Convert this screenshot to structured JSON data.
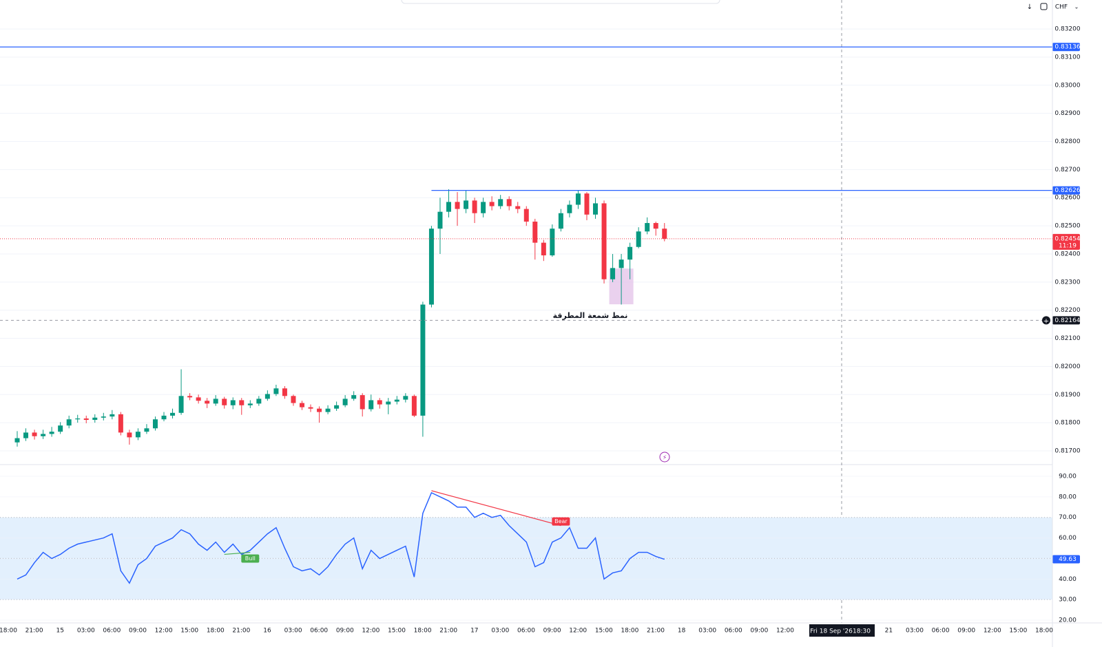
{
  "toolbar": {
    "currency": "CHF"
  },
  "time_axis": {
    "labels": [
      "18:00",
      "21:00",
      "15",
      "03:00",
      "06:00",
      "09:00",
      "12:00",
      "15:00",
      "18:00",
      "21:00",
      "16",
      "03:00",
      "06:00",
      "09:00",
      "12:00",
      "15:00",
      "18:00",
      "21:00",
      "17",
      "03:00",
      "06:00",
      "09:00",
      "12:00",
      "15:00",
      "18:00",
      "21:00",
      "18",
      "03:00",
      "06:00",
      "09:00",
      "12:00",
      null,
      null,
      null,
      "21",
      "03:00",
      "06:00",
      "09:00",
      "12:00",
      "15:00",
      "18:00"
    ],
    "crosshair_label": "Fri 18 Sep '26",
    "crosshair_time": "18:30"
  },
  "chart_data": [
    {
      "type": "candlestick",
      "up_color": "#089981",
      "down_color": "#f23645",
      "ylim": [
        0.81651,
        0.83303
      ],
      "yticks": [
        {
          "value": 0.832,
          "label": "0.83200"
        },
        {
          "value": 0.831,
          "label": "0.83100"
        },
        {
          "value": 0.83,
          "label": "0.83000"
        },
        {
          "value": 0.829,
          "label": "0.82900"
        },
        {
          "value": 0.828,
          "label": "0.82800"
        },
        {
          "value": 0.827,
          "label": "0.82700"
        },
        {
          "value": 0.826,
          "label": "0.82600"
        },
        {
          "value": 0.825,
          "label": "0.82500"
        },
        {
          "value": 0.824,
          "label": "0.82400"
        },
        {
          "value": 0.823,
          "label": "0.82300"
        },
        {
          "value": 0.822,
          "label": "0.82200"
        },
        {
          "value": 0.821,
          "label": "0.82100"
        },
        {
          "value": 0.82,
          "label": "0.82000"
        },
        {
          "value": 0.819,
          "label": "0.81900"
        },
        {
          "value": 0.818,
          "label": "0.81800"
        },
        {
          "value": 0.817,
          "label": "0.81700"
        }
      ],
      "open": [
        0.8173,
        0.81745,
        0.81765,
        0.81752,
        0.8176,
        0.81768,
        0.8179,
        0.81812,
        0.81815,
        0.8181,
        0.81818,
        0.81822,
        0.8183,
        0.81765,
        0.81748,
        0.81768,
        0.8178,
        0.81812,
        0.81825,
        0.81835,
        0.81895,
        0.8189,
        0.81878,
        0.81868,
        0.81885,
        0.81862,
        0.8188,
        0.81862,
        0.81868,
        0.81885,
        0.81902,
        0.81922,
        0.81895,
        0.8187,
        0.81855,
        0.8185,
        0.81838,
        0.8185,
        0.81862,
        0.81885,
        0.81898,
        0.81848,
        0.8188,
        0.81865,
        0.81875,
        0.81882,
        0.81895,
        0.81825,
        0.8222,
        0.8249,
        0.8255,
        0.82585,
        0.8256,
        0.8259,
        0.82545,
        0.82585,
        0.8257,
        0.82595,
        0.8257,
        0.8256,
        0.82515,
        0.8244,
        0.82395,
        0.8249,
        0.82545,
        0.82575,
        0.82615,
        0.8254,
        0.8258,
        0.8231,
        0.8235,
        0.8238,
        0.82425,
        0.8248,
        0.8251,
        0.8249
      ],
      "high": [
        0.8177,
        0.8178,
        0.81775,
        0.81775,
        0.81785,
        0.81802,
        0.81825,
        0.81828,
        0.81825,
        0.8183,
        0.81835,
        0.81845,
        0.81838,
        0.81775,
        0.8178,
        0.81795,
        0.81822,
        0.81838,
        0.8185,
        0.8199,
        0.81905,
        0.819,
        0.81888,
        0.81898,
        0.81892,
        0.8189,
        0.81888,
        0.8188,
        0.81895,
        0.81915,
        0.81935,
        0.8193,
        0.819,
        0.81878,
        0.81865,
        0.81858,
        0.81862,
        0.81875,
        0.81898,
        0.81912,
        0.81905,
        0.819,
        0.81888,
        0.81888,
        0.81895,
        0.81905,
        0.819,
        0.8223,
        0.825,
        0.826,
        0.8263,
        0.8262,
        0.82625,
        0.826,
        0.826,
        0.82605,
        0.8261,
        0.82605,
        0.82585,
        0.8257,
        0.82525,
        0.8245,
        0.82505,
        0.8256,
        0.8259,
        0.82626,
        0.8262,
        0.826,
        0.8259,
        0.824,
        0.824,
        0.8244,
        0.82495,
        0.8253,
        0.82515,
        0.8251
      ],
      "low": [
        0.81715,
        0.81735,
        0.8174,
        0.81742,
        0.8175,
        0.8176,
        0.8178,
        0.818,
        0.81798,
        0.818,
        0.81808,
        0.81812,
        0.81755,
        0.81722,
        0.81738,
        0.8176,
        0.81772,
        0.81805,
        0.81815,
        0.81828,
        0.8188,
        0.81868,
        0.81852,
        0.8186,
        0.8185,
        0.81848,
        0.81828,
        0.81852,
        0.8186,
        0.81878,
        0.81895,
        0.81885,
        0.8186,
        0.81845,
        0.81838,
        0.818,
        0.8183,
        0.81842,
        0.81855,
        0.81878,
        0.81822,
        0.8184,
        0.8185,
        0.8183,
        0.81865,
        0.81872,
        0.8182,
        0.8175,
        0.8221,
        0.824,
        0.8253,
        0.825,
        0.82545,
        0.8251,
        0.8253,
        0.82555,
        0.8256,
        0.82555,
        0.82545,
        0.825,
        0.8238,
        0.82375,
        0.8239,
        0.8248,
        0.8253,
        0.8256,
        0.8252,
        0.82525,
        0.82295,
        0.823,
        0.8222,
        0.8231,
        0.8242,
        0.8247,
        0.82465,
        0.82445
      ],
      "close": [
        0.81745,
        0.81765,
        0.81752,
        0.8176,
        0.81768,
        0.8179,
        0.81812,
        0.81815,
        0.8181,
        0.81818,
        0.81822,
        0.8183,
        0.81765,
        0.81748,
        0.81768,
        0.8178,
        0.81812,
        0.81825,
        0.81835,
        0.81895,
        0.8189,
        0.81878,
        0.81868,
        0.81885,
        0.81862,
        0.8188,
        0.81862,
        0.81868,
        0.81885,
        0.81902,
        0.81922,
        0.81895,
        0.8187,
        0.81855,
        0.8185,
        0.81838,
        0.8185,
        0.81862,
        0.81885,
        0.81898,
        0.81848,
        0.8188,
        0.81865,
        0.81875,
        0.81882,
        0.81895,
        0.81825,
        0.8222,
        0.8249,
        0.8255,
        0.82585,
        0.8256,
        0.8259,
        0.82545,
        0.82585,
        0.8257,
        0.82595,
        0.8257,
        0.8256,
        0.82515,
        0.8244,
        0.82395,
        0.8249,
        0.82545,
        0.82575,
        0.82615,
        0.8254,
        0.8258,
        0.8231,
        0.8235,
        0.8238,
        0.82425,
        0.8248,
        0.8251,
        0.8249,
        0.82454
      ],
      "lines": [
        {
          "value": 0.83136,
          "color": "#2962ff"
        },
        {
          "value": 0.82626,
          "color": "#2962ff",
          "start": 48
        }
      ],
      "last_price": 0.82454,
      "last_color": "#f23645",
      "countdown": "11:19",
      "crosshair_price": 0.82164,
      "annotation": {
        "text": "نمط شمعة المطرقة",
        "from": 69,
        "to": 71,
        "top": 0.82348,
        "bottom": 0.82221,
        "color": "#e1bee7"
      }
    },
    {
      "type": "line",
      "color": "#2962ff",
      "values": [
        40,
        42,
        48,
        53,
        50,
        52,
        55,
        57,
        58,
        59,
        60,
        62,
        44,
        38,
        47,
        50,
        56,
        58,
        60,
        64,
        62,
        57,
        54,
        58,
        53,
        57,
        52,
        54,
        58,
        62,
        65,
        55,
        46,
        44,
        45,
        42,
        46,
        52,
        57,
        60,
        45,
        54,
        50,
        52,
        54,
        56,
        41,
        72,
        82,
        80,
        78,
        75,
        75,
        70,
        72,
        70,
        71,
        66,
        62,
        58,
        46,
        48,
        58,
        60,
        65,
        55,
        55,
        60,
        40,
        43,
        44,
        50,
        53,
        53,
        51,
        49.63
      ],
      "ylim": [
        18.66,
        95.69
      ],
      "yticks": [
        {
          "value": 90,
          "label": "90.00"
        },
        {
          "value": 80,
          "label": "80.00"
        },
        {
          "value": 70,
          "label": "70.00"
        },
        {
          "value": 60,
          "label": "60.00"
        },
        {
          "value": 50,
          "label": "50.00"
        },
        {
          "value": 40,
          "label": "40.00"
        },
        {
          "value": 30,
          "label": "30.00"
        },
        {
          "value": 20,
          "label": "20.00"
        }
      ],
      "band": [
        30,
        70
      ],
      "band_color": "#e3f0fd",
      "midline": 50,
      "last_value": 49.63,
      "divergences": [
        {
          "label": "Bear",
          "color": "#f23645",
          "from": 48,
          "to": 63,
          "values": [
            83,
            66
          ]
        },
        {
          "label": "Bull",
          "color": "#4caf50",
          "from": 24,
          "to": 27,
          "values": [
            52,
            53
          ]
        }
      ]
    }
  ]
}
